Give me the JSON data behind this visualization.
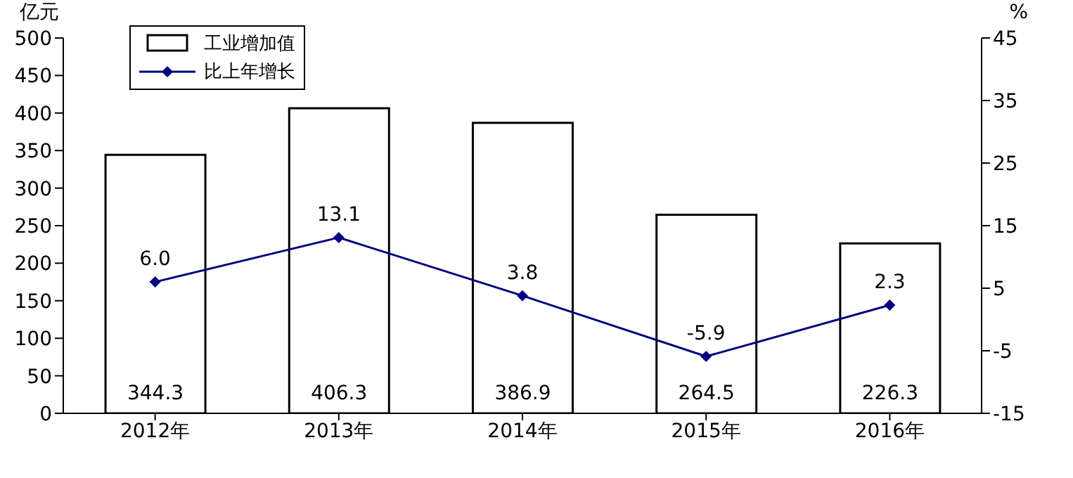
{
  "chart_data": {
    "type": "bar",
    "ylabel": "亿元",
    "y2label": "%",
    "categories": [
      "2012年",
      "2013年",
      "2014年",
      "2015年",
      "2016年"
    ],
    "series": [
      {
        "name": "工业增加值",
        "color": "#ffffff",
        "values": [
          344.3,
          406.3,
          386.9,
          264.5,
          226.3
        ]
      },
      {
        "name": "比上年增长",
        "type": "line",
        "axis": "y2",
        "color": "#000080",
        "marker": "diamond",
        "values": [
          6.0,
          13.1,
          3.8,
          -5.9,
          2.3
        ],
        "value_labels": [
          "6.0",
          "13.1",
          "3.8",
          "-5.9",
          "2.3"
        ]
      }
    ],
    "ylim": [
      0,
      500
    ],
    "yticks": [
      0,
      50,
      100,
      150,
      200,
      250,
      300,
      350,
      400,
      450,
      500
    ],
    "y2lim": [
      -15,
      45
    ],
    "y2ticks": [
      -15,
      -5,
      5,
      15,
      25,
      35,
      45
    ],
    "data_labels": true,
    "legend": "top left",
    "grid": false
  }
}
